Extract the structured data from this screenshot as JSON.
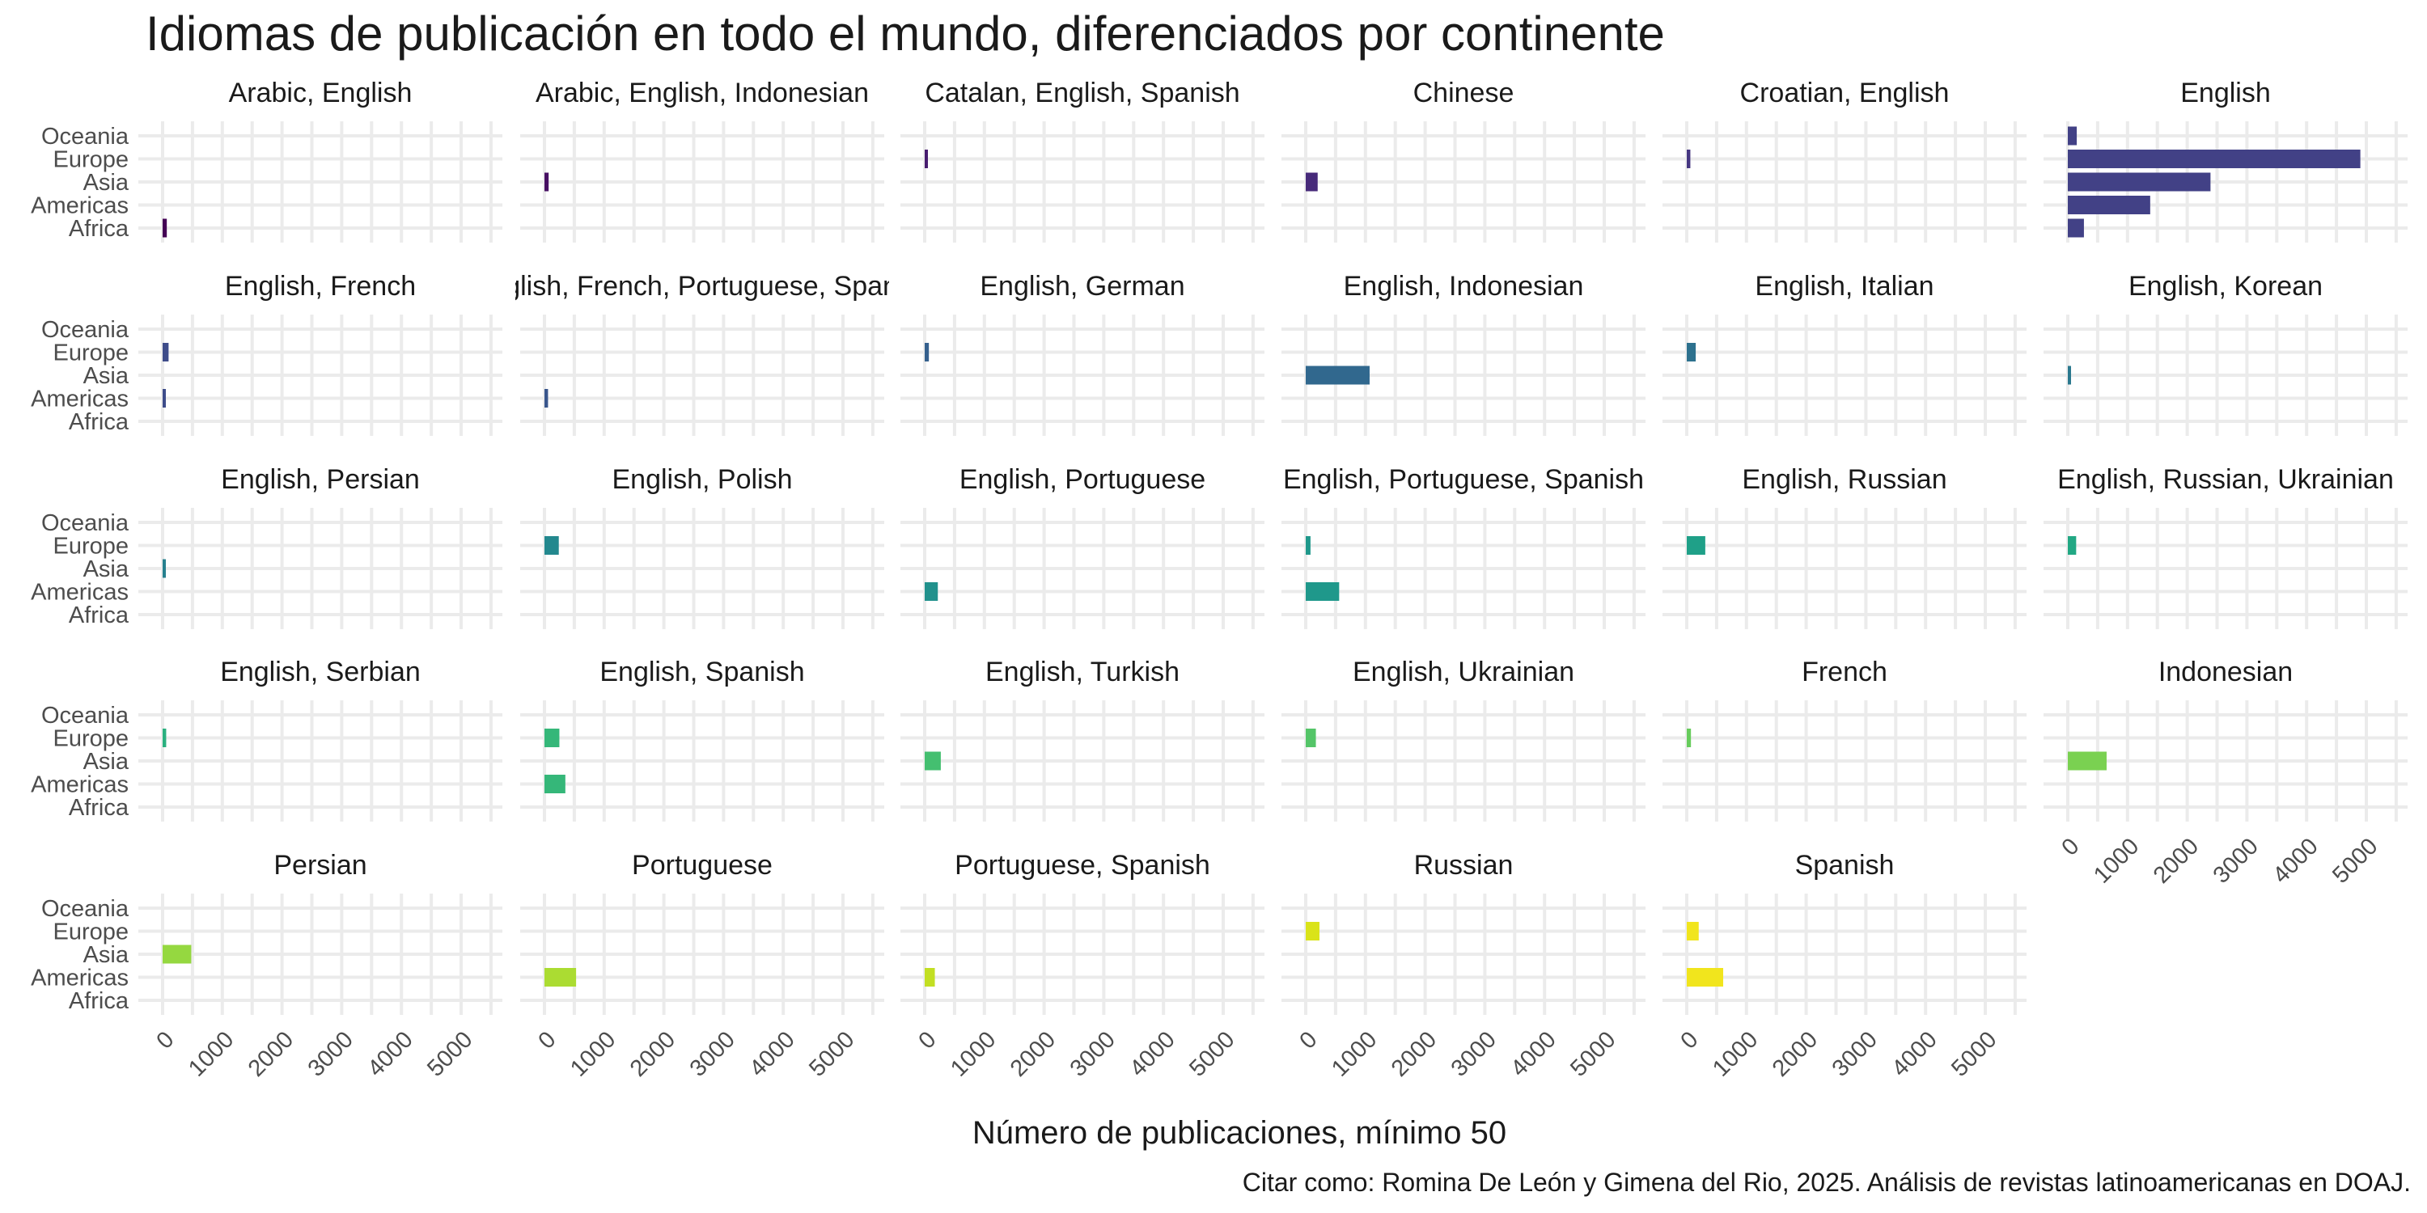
{
  "chart_data": {
    "type": "bar",
    "orientation": "horizontal",
    "faceted": true,
    "title": "Idiomas de publicación en todo el mundo, diferenciados por continente",
    "xlabel": "Número de publicaciones, mínimo 50",
    "ylabel": "",
    "caption": "Citar como: Romina De León y Gimena del Rio, 2025. Análisis de revistas latinoamericanas en DOAJ.",
    "categories": [
      "Africa",
      "Americas",
      "Asia",
      "Europe",
      "Oceania"
    ],
    "xlim": [
      0,
      5000
    ],
    "xticks": [
      0,
      1000,
      2000,
      3000,
      4000,
      5000
    ],
    "grid": true,
    "legend": "none",
    "facet_columns": 6,
    "facets": [
      {
        "name": "Arabic, English",
        "color": "#440154",
        "values": [
          70,
          0,
          0,
          0,
          0
        ]
      },
      {
        "name": "Arabic, English, Indonesian",
        "color": "#471063",
        "values": [
          0,
          0,
          70,
          0,
          0
        ]
      },
      {
        "name": "Catalan, English, Spanish",
        "color": "#481D6F",
        "values": [
          0,
          0,
          0,
          50,
          0
        ]
      },
      {
        "name": "Chinese",
        "color": "#472A7A",
        "values": [
          0,
          0,
          200,
          0,
          0
        ]
      },
      {
        "name": "Croatian, English",
        "color": "#453681",
        "values": [
          0,
          0,
          0,
          60,
          0
        ]
      },
      {
        "name": "English",
        "color": "#424186",
        "values": [
          270,
          1380,
          2390,
          4900,
          150
        ]
      },
      {
        "name": "English, French",
        "color": "#3E4C8A",
        "values": [
          0,
          50,
          0,
          100,
          0
        ]
      },
      {
        "name": "English, French, Portuguese, Spanish",
        "color": "#39568C",
        "values": [
          0,
          60,
          0,
          0,
          0
        ]
      },
      {
        "name": "English, German",
        "color": "#35608D",
        "values": [
          0,
          0,
          0,
          70,
          0
        ]
      },
      {
        "name": "English, Indonesian",
        "color": "#31688E",
        "values": [
          0,
          0,
          1070,
          0,
          0
        ]
      },
      {
        "name": "English, Italian",
        "color": "#2D718E",
        "values": [
          0,
          0,
          0,
          150,
          0
        ]
      },
      {
        "name": "English, Korean",
        "color": "#2A788E",
        "values": [
          0,
          0,
          50,
          0,
          0
        ]
      },
      {
        "name": "English, Persian",
        "color": "#27808E",
        "values": [
          0,
          0,
          50,
          0,
          0
        ]
      },
      {
        "name": "English, Polish",
        "color": "#23888E",
        "values": [
          0,
          0,
          0,
          240,
          0
        ]
      },
      {
        "name": "English, Portuguese",
        "color": "#21918C",
        "values": [
          0,
          220,
          0,
          0,
          0
        ]
      },
      {
        "name": "English, Portuguese, Spanish",
        "color": "#1F988B",
        "values": [
          0,
          560,
          0,
          80,
          0
        ]
      },
      {
        "name": "English, Russian",
        "color": "#1FA088",
        "values": [
          0,
          0,
          0,
          310,
          0
        ]
      },
      {
        "name": "English, Russian, Ukrainian",
        "color": "#22A884",
        "values": [
          0,
          0,
          0,
          140,
          0
        ]
      },
      {
        "name": "English, Serbian",
        "color": "#2AB07F",
        "values": [
          0,
          0,
          0,
          60,
          0
        ]
      },
      {
        "name": "English, Spanish",
        "color": "#35B779",
        "values": [
          0,
          350,
          0,
          250,
          0
        ]
      },
      {
        "name": "English, Turkish",
        "color": "#44BF70",
        "values": [
          0,
          0,
          270,
          0,
          0
        ]
      },
      {
        "name": "English, Ukrainian",
        "color": "#54C568",
        "values": [
          0,
          0,
          0,
          170,
          0
        ]
      },
      {
        "name": "French",
        "color": "#67CC5C",
        "values": [
          0,
          0,
          0,
          70,
          0
        ]
      },
      {
        "name": "Indonesian",
        "color": "#7AD151",
        "values": [
          0,
          0,
          650,
          0,
          0
        ]
      },
      {
        "name": "Persian",
        "color": "#95D840",
        "values": [
          0,
          0,
          480,
          0,
          0
        ]
      },
      {
        "name": "Portuguese",
        "color": "#ABDC32",
        "values": [
          0,
          530,
          0,
          0,
          0
        ]
      },
      {
        "name": "Portuguese, Spanish",
        "color": "#C2DF23",
        "values": [
          0,
          170,
          0,
          0,
          0
        ]
      },
      {
        "name": "Russian",
        "color": "#DAE319",
        "values": [
          0,
          0,
          0,
          230,
          0
        ]
      },
      {
        "name": "Spanish",
        "color": "#F1E51D",
        "values": [
          0,
          610,
          0,
          200,
          0
        ]
      }
    ]
  }
}
